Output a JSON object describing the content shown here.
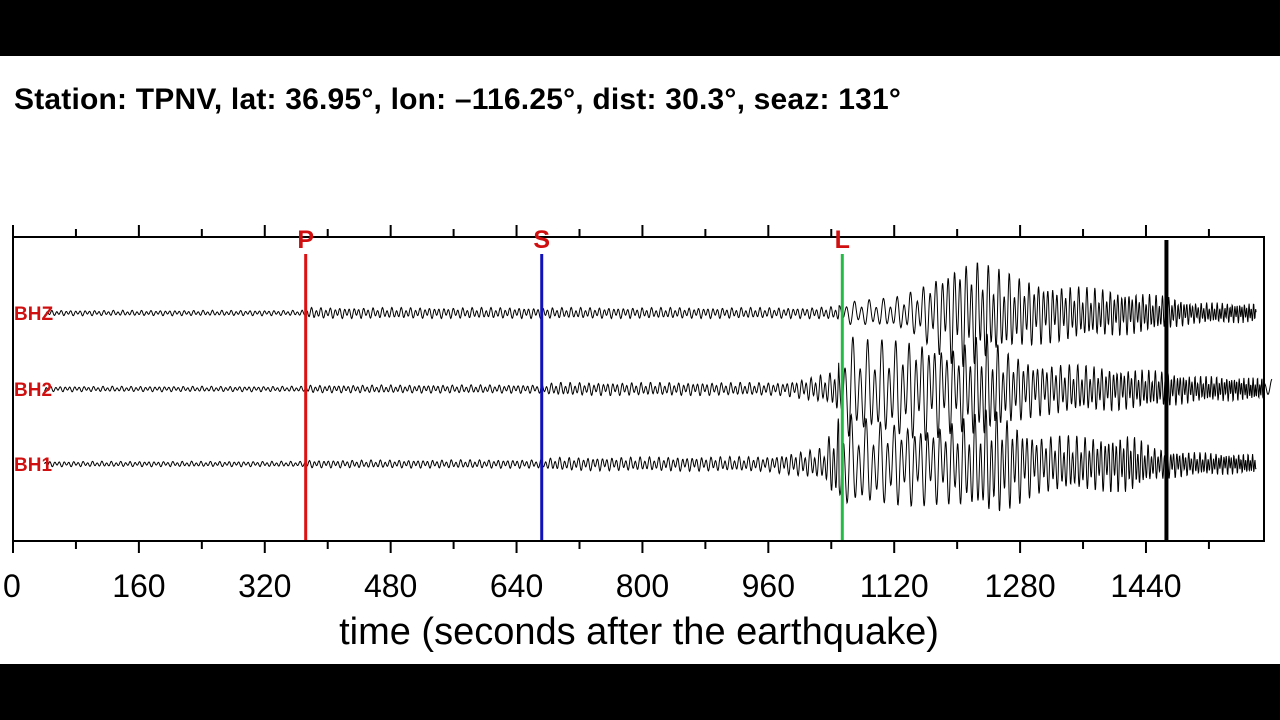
{
  "header": {
    "title": "Station: TPNV, lat: 36.95°, lon: –116.25°, dist: 30.3°, seaz: 131°"
  },
  "chart_data": {
    "type": "line",
    "title": "Station: TPNV, lat: 36.95°, lon: –116.25°, dist: 30.3°, seaz: 131°",
    "xlabel": "time (seconds after the earthquake)",
    "ylabel": "",
    "xlim": [
      0,
      1590
    ],
    "x_ticks": [
      0,
      160,
      320,
      480,
      640,
      800,
      960,
      1120,
      1280,
      1440
    ],
    "x_minor_step": 80,
    "grid": false,
    "legend": "none",
    "series": [
      {
        "name": "BHZ",
        "color": "#000000",
        "envelope": {
          "t": [
            40,
            372,
            374,
            1000,
            1045,
            1060,
            1120,
            1150,
            1180,
            1200,
            1225,
            1245,
            1280,
            1320,
            1360,
            1420,
            1470,
            1500,
            1580
          ],
          "amp": [
            0.05,
            0.05,
            0.1,
            0.1,
            0.12,
            0.22,
            0.28,
            0.45,
            0.8,
            1.0,
            1.0,
            0.85,
            0.65,
            0.55,
            0.48,
            0.4,
            0.3,
            0.2,
            0.18
          ]
        }
      },
      {
        "name": "BH2",
        "color": "#000000",
        "envelope": {
          "t": [
            40,
            372,
            374,
            670,
            690,
            980,
            1040,
            1062,
            1080,
            1100,
            1160,
            1200,
            1235,
            1260,
            1300,
            1400,
            1470,
            1500,
            1600
          ],
          "amp": [
            0.05,
            0.05,
            0.07,
            0.08,
            0.12,
            0.12,
            0.3,
            1.0,
            0.9,
            0.9,
            0.95,
            0.8,
            1.05,
            0.7,
            0.5,
            0.4,
            0.32,
            0.25,
            0.2
          ]
        }
      },
      {
        "name": "BH1",
        "color": "#000000",
        "envelope": {
          "t": [
            40,
            372,
            374,
            670,
            690,
            960,
            1030,
            1052,
            1075,
            1100,
            1180,
            1220,
            1245,
            1300,
            1380,
            1420,
            1450,
            1500,
            1580
          ],
          "amp": [
            0.05,
            0.05,
            0.07,
            0.08,
            0.12,
            0.14,
            0.3,
            0.95,
            0.85,
            0.8,
            0.75,
            0.9,
            1.05,
            0.55,
            0.5,
            0.55,
            0.3,
            0.22,
            0.18
          ]
        }
      }
    ],
    "phase_markers": [
      {
        "label": "P",
        "t": 372,
        "color": "#dd1111"
      },
      {
        "label": "S",
        "t": 672,
        "color": "#1111bb"
      },
      {
        "label": "L",
        "t": 1054,
        "color": "#22bb44"
      }
    ],
    "end_marker": {
      "t": 1466,
      "color": "#000000"
    }
  }
}
